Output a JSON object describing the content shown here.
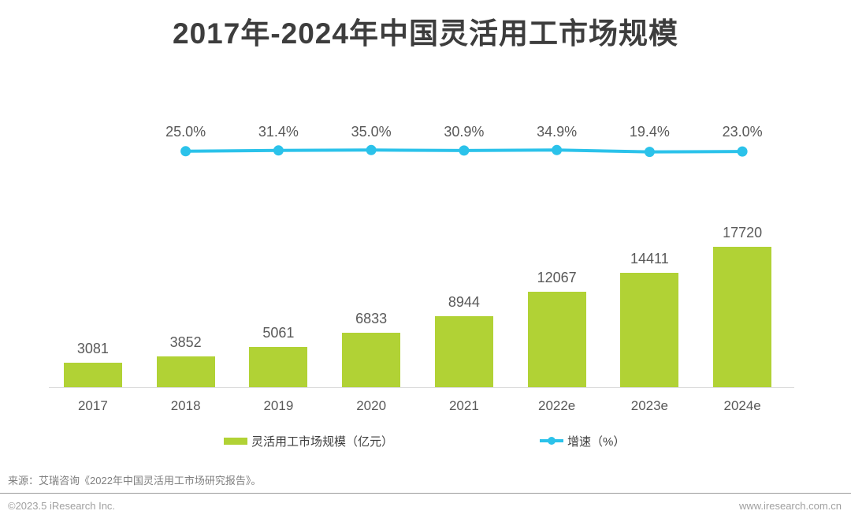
{
  "page": {
    "source_note": "来源：艾瑞咨询《2022年中国灵活用工市场研究报告》。",
    "footer": {
      "copyright": "©2023.5 iResearch Inc.",
      "website": "www.iresearch.com.cn"
    }
  },
  "colors": {
    "bar_green": "#b1d235",
    "line_blue": "#2bc2ea",
    "title_text": "#3d3d3d",
    "label_text": "#595959",
    "axis_line": "#dcdcdc"
  },
  "chart_data": {
    "type": "bar",
    "combo": "bar+line",
    "title": "2017年-2024年中国灵活用工市场规模",
    "categories": [
      "2017",
      "2018",
      "2019",
      "2020",
      "2021",
      "2022e",
      "2023e",
      "2024e"
    ],
    "series": [
      {
        "name": "灵活用工市场规模（亿元）",
        "type": "bar",
        "values": [
          3081,
          3852,
          5061,
          6833,
          8944,
          12067,
          14411,
          17720
        ]
      },
      {
        "name": "增速（%）",
        "type": "line",
        "categories": [
          "2018",
          "2019",
          "2020",
          "2021",
          "2022e",
          "2023e",
          "2024e"
        ],
        "values": [
          25.0,
          31.4,
          35.0,
          30.9,
          34.9,
          19.4,
          23.0
        ]
      }
    ],
    "legend": [
      {
        "label": "灵活用工市场规模（亿元）",
        "marker": "bar"
      },
      {
        "label": "增速（%）",
        "marker": "line-dot"
      }
    ],
    "ylabel": "",
    "xlabel": "",
    "grid": false,
    "legend_position": "bottom"
  }
}
